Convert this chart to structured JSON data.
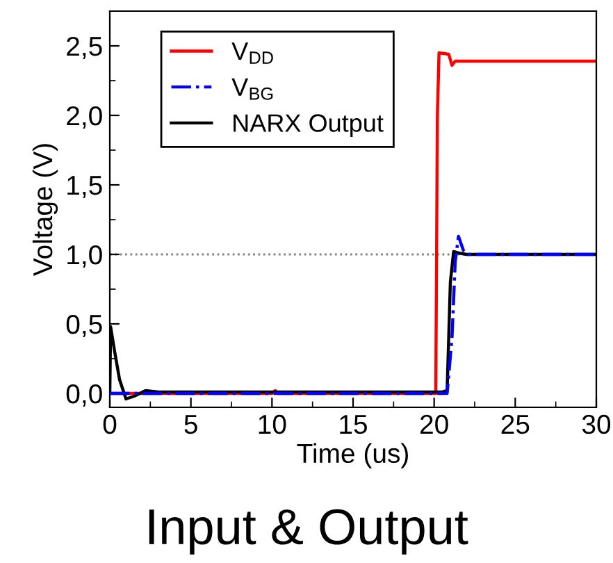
{
  "chart_data": {
    "type": "line",
    "title": "Input & Output",
    "xlabel": "Time (us)",
    "ylabel": "Voltage (V)",
    "xlim": [
      0,
      30
    ],
    "ylim": [
      -0.1,
      2.75
    ],
    "xticks": [
      0,
      {
        "value": 2.5,
        "label": null
      },
      5,
      {
        "value": 7.5,
        "label": null
      },
      10,
      {
        "value": 12.5,
        "label": null
      },
      15,
      {
        "value": 17.5,
        "label": null
      },
      20,
      {
        "value": 22.5,
        "label": null
      },
      25,
      {
        "value": 27.5,
        "label": null
      },
      30
    ],
    "yticks": [
      {
        "value": 0,
        "label": "0,0"
      },
      {
        "value": 0.25,
        "label": null
      },
      {
        "value": 0.5,
        "label": "0,5"
      },
      {
        "value": 0.75,
        "label": null
      },
      {
        "value": 1.0,
        "label": "1,0"
      },
      {
        "value": 1.25,
        "label": null
      },
      {
        "value": 1.5,
        "label": "1,5"
      },
      {
        "value": 1.75,
        "label": null
      },
      {
        "value": 2.0,
        "label": "2,0"
      },
      {
        "value": 2.25,
        "label": null
      },
      {
        "value": 2.5,
        "label": "2,5"
      }
    ],
    "legend": "top left",
    "grid": false,
    "ref_lines": [
      {
        "axis": "y",
        "value": 1.0,
        "color": "#808080",
        "line_style": "dotted"
      }
    ],
    "series": [
      {
        "name": "V$_{DD}$",
        "color": "#ff0000",
        "line_style": "solid",
        "x": [
          0,
          10.0,
          10.2,
          10.4,
          20.1,
          20.2,
          20.3,
          20.9,
          21.1,
          21.3,
          30
        ],
        "values": [
          0,
          0,
          0.02,
          0,
          0,
          2.0,
          2.45,
          2.44,
          2.36,
          2.39,
          2.39
        ]
      },
      {
        "name": "V$_{BG}$",
        "color": "#0000ff",
        "line_style": "dashdot",
        "x": [
          0,
          20.8,
          21.1,
          21.3,
          21.5,
          21.8,
          22.1,
          30
        ],
        "values": [
          0,
          0,
          0.4,
          0.95,
          1.13,
          1.03,
          1.0,
          1.0
        ]
      },
      {
        "name": "NARX Output",
        "color": "#000000",
        "line_style": "solid",
        "x": [
          0,
          0.05,
          0.3,
          0.6,
          1.0,
          1.5,
          2.2,
          3.0,
          20.5,
          20.8,
          21.0,
          21.2,
          21.5,
          22.0,
          30
        ],
        "values": [
          0,
          0.48,
          0.3,
          0.1,
          -0.04,
          -0.02,
          0.02,
          0.01,
          0.01,
          0.02,
          0.8,
          1.02,
          1.01,
          1.0,
          1.0
        ]
      }
    ]
  }
}
